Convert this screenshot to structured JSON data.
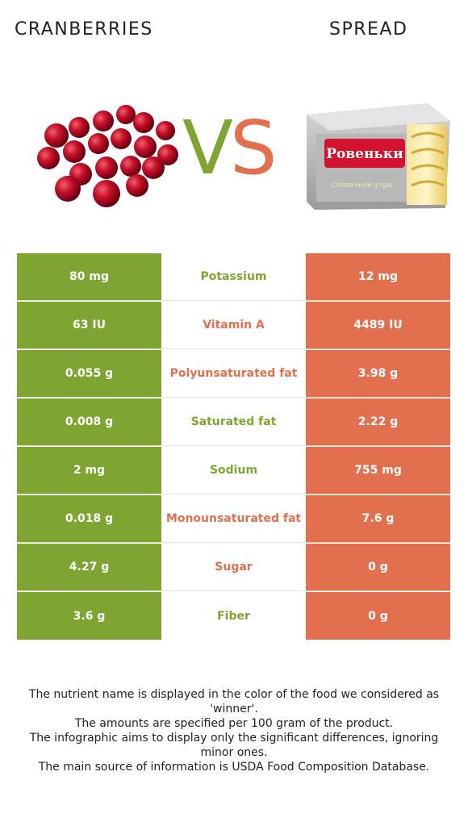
{
  "header": {
    "left_food": "CRANBERRIES",
    "right_food": "SPREAD",
    "vs_v": "V",
    "vs_s": "S"
  },
  "colors": {
    "left": "#7ea532",
    "right": "#e2704f"
  },
  "product_label": {
    "brand": "Ровеньки",
    "subtitle": "Сливочное утро"
  },
  "rows": [
    {
      "left": "80 mg",
      "nutrient": "Potassium",
      "right": "12 mg",
      "winner": "left"
    },
    {
      "left": "63 IU",
      "nutrient": "Vitamin A",
      "right": "4489 IU",
      "winner": "right"
    },
    {
      "left": "0.055 g",
      "nutrient": "Polyunsaturated fat",
      "right": "3.98 g",
      "winner": "right"
    },
    {
      "left": "0.008 g",
      "nutrient": "Saturated fat",
      "right": "2.22 g",
      "winner": "left"
    },
    {
      "left": "2 mg",
      "nutrient": "Sodium",
      "right": "755 mg",
      "winner": "left"
    },
    {
      "left": "0.018 g",
      "nutrient": "Monounsaturated fat",
      "right": "7.6 g",
      "winner": "right"
    },
    {
      "left": "4.27 g",
      "nutrient": "Sugar",
      "right": "0 g",
      "winner": "right"
    },
    {
      "left": "3.6 g",
      "nutrient": "Fiber",
      "right": "0 g",
      "winner": "left"
    }
  ],
  "notes": [
    "The nutrient name is displayed in the color of the food we considered as 'winner'.",
    "The amounts are specified per 100 gram of the product.",
    "The infographic aims to display only the significant differences, ignoring minor ones.",
    "The main source of information is USDA Food Composition Database."
  ]
}
